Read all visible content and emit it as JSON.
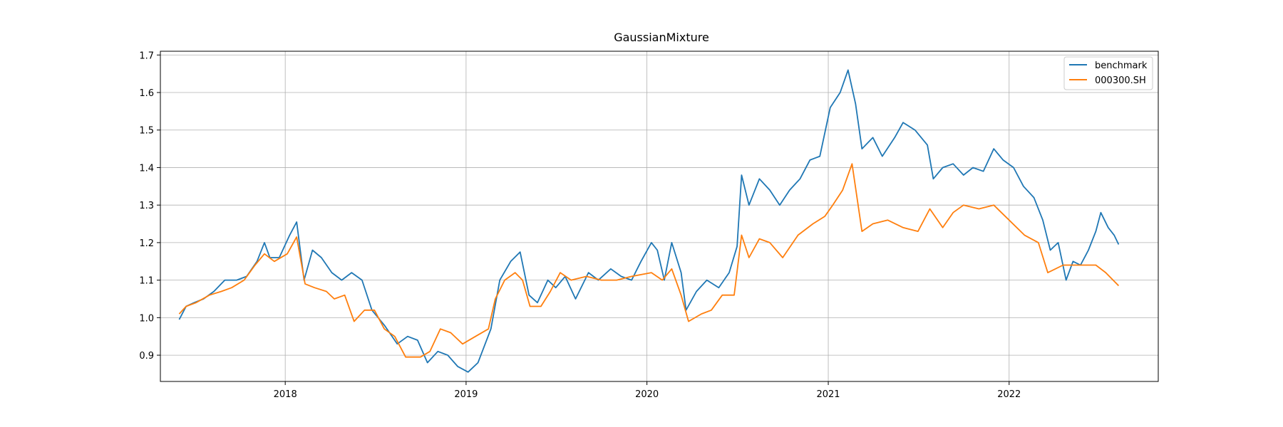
{
  "chart_data": {
    "type": "line",
    "title": "GaussianMixture",
    "xlabel": "",
    "ylabel": "",
    "xlim": [
      "2017-04-24",
      "2022-10-29"
    ],
    "ylim": [
      0.83,
      1.71
    ],
    "x_ticks": [
      "2018",
      "2019",
      "2020",
      "2021",
      "2022"
    ],
    "y_ticks": [
      "0.9",
      "1.0",
      "1.1",
      "1.2",
      "1.3",
      "1.4",
      "1.5",
      "1.6",
      "1.7"
    ],
    "grid": true,
    "legend_position": "top-right",
    "series": [
      {
        "name": "benchmark",
        "color": "#1f77b4",
        "points": [
          [
            "2017-06-01",
            0.995
          ],
          [
            "2017-06-15",
            1.03
          ],
          [
            "2017-07-01",
            1.04
          ],
          [
            "2017-07-20",
            1.05
          ],
          [
            "2017-08-10",
            1.07
          ],
          [
            "2017-09-01",
            1.1
          ],
          [
            "2017-09-25",
            1.1
          ],
          [
            "2017-10-15",
            1.11
          ],
          [
            "2017-11-05",
            1.15
          ],
          [
            "2017-11-20",
            1.2
          ],
          [
            "2017-12-01",
            1.16
          ],
          [
            "2017-12-20",
            1.16
          ],
          [
            "2018-01-10",
            1.22
          ],
          [
            "2018-01-24",
            1.255
          ],
          [
            "2018-02-08",
            1.1
          ],
          [
            "2018-02-25",
            1.18
          ],
          [
            "2018-03-15",
            1.16
          ],
          [
            "2018-04-05",
            1.12
          ],
          [
            "2018-04-25",
            1.1
          ],
          [
            "2018-05-15",
            1.12
          ],
          [
            "2018-06-05",
            1.1
          ],
          [
            "2018-06-25",
            1.02
          ],
          [
            "2018-07-20",
            0.98
          ],
          [
            "2018-08-15",
            0.93
          ],
          [
            "2018-09-05",
            0.95
          ],
          [
            "2018-09-25",
            0.94
          ],
          [
            "2018-10-15",
            0.88
          ],
          [
            "2018-11-05",
            0.91
          ],
          [
            "2018-11-25",
            0.9
          ],
          [
            "2018-12-15",
            0.87
          ],
          [
            "2019-01-05",
            0.855
          ],
          [
            "2019-01-25",
            0.88
          ],
          [
            "2019-02-20",
            0.97
          ],
          [
            "2019-03-10",
            1.1
          ],
          [
            "2019-04-01",
            1.15
          ],
          [
            "2019-04-20",
            1.175
          ],
          [
            "2019-05-08",
            1.06
          ],
          [
            "2019-05-25",
            1.04
          ],
          [
            "2019-06-15",
            1.1
          ],
          [
            "2019-07-01",
            1.08
          ],
          [
            "2019-07-20",
            1.11
          ],
          [
            "2019-08-10",
            1.05
          ],
          [
            "2019-09-05",
            1.12
          ],
          [
            "2019-09-25",
            1.1
          ],
          [
            "2019-10-20",
            1.13
          ],
          [
            "2019-11-10",
            1.11
          ],
          [
            "2019-12-01",
            1.1
          ],
          [
            "2019-12-20",
            1.15
          ],
          [
            "2020-01-10",
            1.2
          ],
          [
            "2020-01-22",
            1.18
          ],
          [
            "2020-02-05",
            1.1
          ],
          [
            "2020-02-20",
            1.2
          ],
          [
            "2020-03-10",
            1.12
          ],
          [
            "2020-03-20",
            1.02
          ],
          [
            "2020-04-10",
            1.07
          ],
          [
            "2020-05-01",
            1.1
          ],
          [
            "2020-05-25",
            1.08
          ],
          [
            "2020-06-15",
            1.12
          ],
          [
            "2020-07-01",
            1.19
          ],
          [
            "2020-07-10",
            1.38
          ],
          [
            "2020-07-25",
            1.3
          ],
          [
            "2020-08-15",
            1.37
          ],
          [
            "2020-09-05",
            1.34
          ],
          [
            "2020-09-25",
            1.3
          ],
          [
            "2020-10-15",
            1.34
          ],
          [
            "2020-11-05",
            1.37
          ],
          [
            "2020-11-25",
            1.42
          ],
          [
            "2020-12-15",
            1.43
          ],
          [
            "2021-01-05",
            1.56
          ],
          [
            "2021-01-25",
            1.6
          ],
          [
            "2021-02-10",
            1.66
          ],
          [
            "2021-02-25",
            1.57
          ],
          [
            "2021-03-10",
            1.45
          ],
          [
            "2021-04-01",
            1.48
          ],
          [
            "2021-04-20",
            1.43
          ],
          [
            "2021-05-15",
            1.48
          ],
          [
            "2021-06-01",
            1.52
          ],
          [
            "2021-06-25",
            1.5
          ],
          [
            "2021-07-20",
            1.46
          ],
          [
            "2021-08-01",
            1.37
          ],
          [
            "2021-08-20",
            1.4
          ],
          [
            "2021-09-10",
            1.41
          ],
          [
            "2021-10-01",
            1.38
          ],
          [
            "2021-10-20",
            1.4
          ],
          [
            "2021-11-10",
            1.39
          ],
          [
            "2021-12-01",
            1.45
          ],
          [
            "2021-12-20",
            1.42
          ],
          [
            "2022-01-10",
            1.4
          ],
          [
            "2022-01-30",
            1.35
          ],
          [
            "2022-02-20",
            1.32
          ],
          [
            "2022-03-10",
            1.26
          ],
          [
            "2022-03-25",
            1.18
          ],
          [
            "2022-04-10",
            1.2
          ],
          [
            "2022-04-26",
            1.1
          ],
          [
            "2022-05-10",
            1.15
          ],
          [
            "2022-05-25",
            1.14
          ],
          [
            "2022-06-10",
            1.18
          ],
          [
            "2022-06-25",
            1.23
          ],
          [
            "2022-07-05",
            1.28
          ],
          [
            "2022-07-20",
            1.24
          ],
          [
            "2022-08-01",
            1.22
          ],
          [
            "2022-08-10",
            1.195
          ]
        ]
      },
      {
        "name": "000300.SH",
        "color": "#ff7f0e",
        "points": [
          [
            "2017-06-01",
            1.01
          ],
          [
            "2017-06-15",
            1.03
          ],
          [
            "2017-07-05",
            1.04
          ],
          [
            "2017-08-01",
            1.06
          ],
          [
            "2017-08-25",
            1.07
          ],
          [
            "2017-09-15",
            1.08
          ],
          [
            "2017-10-10",
            1.1
          ],
          [
            "2017-11-01",
            1.14
          ],
          [
            "2017-11-20",
            1.17
          ],
          [
            "2017-12-10",
            1.15
          ],
          [
            "2018-01-05",
            1.17
          ],
          [
            "2018-01-24",
            1.215
          ],
          [
            "2018-02-10",
            1.09
          ],
          [
            "2018-03-01",
            1.08
          ],
          [
            "2018-03-25",
            1.07
          ],
          [
            "2018-04-10",
            1.05
          ],
          [
            "2018-05-01",
            1.06
          ],
          [
            "2018-05-20",
            0.99
          ],
          [
            "2018-06-10",
            1.02
          ],
          [
            "2018-06-30",
            1.02
          ],
          [
            "2018-07-20",
            0.97
          ],
          [
            "2018-08-10",
            0.95
          ],
          [
            "2018-09-01",
            0.895
          ],
          [
            "2018-10-01",
            0.895
          ],
          [
            "2018-10-20",
            0.91
          ],
          [
            "2018-11-10",
            0.97
          ],
          [
            "2018-12-01",
            0.96
          ],
          [
            "2018-12-25",
            0.93
          ],
          [
            "2019-01-20",
            0.95
          ],
          [
            "2019-02-15",
            0.97
          ],
          [
            "2019-03-01",
            1.05
          ],
          [
            "2019-03-20",
            1.1
          ],
          [
            "2019-04-10",
            1.12
          ],
          [
            "2019-04-25",
            1.1
          ],
          [
            "2019-05-10",
            1.03
          ],
          [
            "2019-06-01",
            1.03
          ],
          [
            "2019-06-20",
            1.07
          ],
          [
            "2019-07-10",
            1.12
          ],
          [
            "2019-08-01",
            1.1
          ],
          [
            "2019-09-01",
            1.11
          ],
          [
            "2019-10-01",
            1.1
          ],
          [
            "2019-11-01",
            1.1
          ],
          [
            "2019-12-01",
            1.11
          ],
          [
            "2020-01-10",
            1.12
          ],
          [
            "2020-02-01",
            1.1
          ],
          [
            "2020-02-20",
            1.13
          ],
          [
            "2020-03-10",
            1.06
          ],
          [
            "2020-03-25",
            0.99
          ],
          [
            "2020-04-20",
            1.01
          ],
          [
            "2020-05-10",
            1.02
          ],
          [
            "2020-06-01",
            1.06
          ],
          [
            "2020-06-25",
            1.06
          ],
          [
            "2020-07-10",
            1.22
          ],
          [
            "2020-07-25",
            1.16
          ],
          [
            "2020-08-15",
            1.21
          ],
          [
            "2020-09-05",
            1.2
          ],
          [
            "2020-10-01",
            1.16
          ],
          [
            "2020-11-01",
            1.22
          ],
          [
            "2020-12-01",
            1.25
          ],
          [
            "2020-12-25",
            1.27
          ],
          [
            "2021-01-10",
            1.3
          ],
          [
            "2021-01-30",
            1.34
          ],
          [
            "2021-02-18",
            1.41
          ],
          [
            "2021-03-10",
            1.23
          ],
          [
            "2021-04-01",
            1.25
          ],
          [
            "2021-05-01",
            1.26
          ],
          [
            "2021-06-01",
            1.24
          ],
          [
            "2021-07-01",
            1.23
          ],
          [
            "2021-07-25",
            1.29
          ],
          [
            "2021-08-20",
            1.24
          ],
          [
            "2021-09-10",
            1.28
          ],
          [
            "2021-10-01",
            1.3
          ],
          [
            "2021-11-01",
            1.29
          ],
          [
            "2021-12-01",
            1.3
          ],
          [
            "2022-01-01",
            1.26
          ],
          [
            "2022-02-01",
            1.22
          ],
          [
            "2022-03-01",
            1.2
          ],
          [
            "2022-03-20",
            1.12
          ],
          [
            "2022-04-20",
            1.14
          ],
          [
            "2022-06-01",
            1.14
          ],
          [
            "2022-06-25",
            1.14
          ],
          [
            "2022-07-15",
            1.12
          ],
          [
            "2022-08-10",
            1.085
          ]
        ]
      }
    ]
  }
}
